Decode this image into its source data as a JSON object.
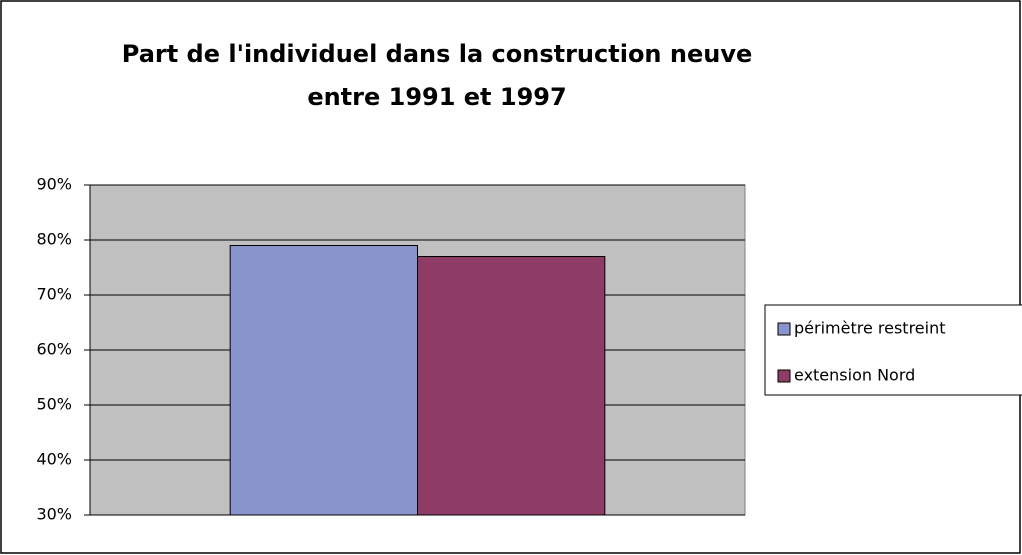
{
  "chart_data": {
    "type": "bar",
    "title": "Part de l'individuel dans la construction neuve entre 1991 et 1997",
    "categories": [
      null
    ],
    "series": [
      {
        "name": "périmètre restreint",
        "color": "#8a94cc",
        "values": [
          79
        ]
      },
      {
        "name": "extension Nord",
        "color": "#8e3b66",
        "values": [
          77
        ]
      }
    ],
    "ylim": [
      30,
      90
    ],
    "yticks": [
      {
        "value": 30,
        "label": "30%"
      },
      {
        "value": 40,
        "label": "40%"
      },
      {
        "value": 50,
        "label": "50%"
      },
      {
        "value": 60,
        "label": "60%"
      },
      {
        "value": 70,
        "label": "70%"
      },
      {
        "value": 80,
        "label": "80%"
      },
      {
        "value": 90,
        "label": "90%"
      }
    ],
    "grid": true,
    "legend": "right"
  }
}
